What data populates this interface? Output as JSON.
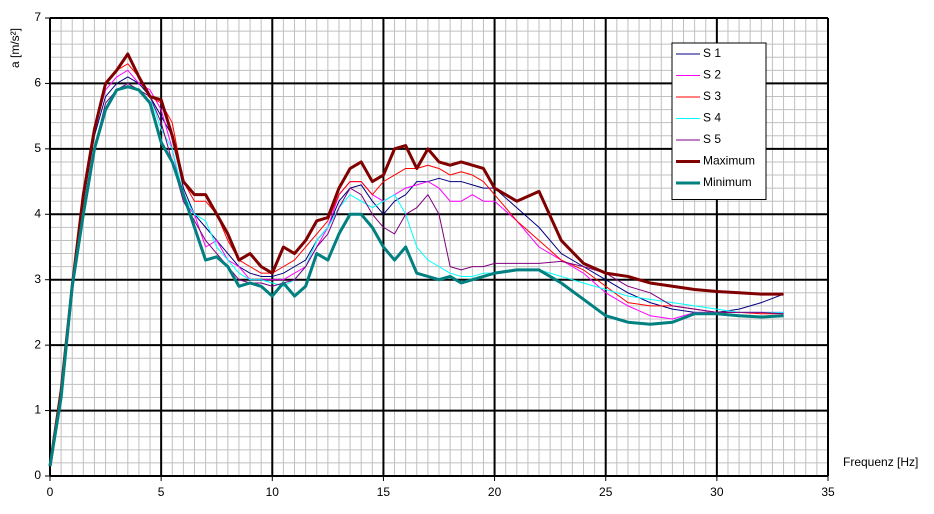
{
  "chart_data": {
    "type": "line",
    "x_label": "Frequenz [Hz]",
    "y_label": "a [m/s²]",
    "x": [
      0,
      0.5,
      1,
      1.5,
      2,
      2.5,
      3,
      3.5,
      4,
      4.5,
      5,
      5.5,
      6,
      6.5,
      7,
      7.5,
      8,
      8.5,
      9,
      9.5,
      10,
      10.5,
      11,
      11.5,
      12,
      12.5,
      13,
      13.5,
      14,
      14.5,
      15,
      15.5,
      16,
      16.5,
      17,
      17.5,
      18,
      18.5,
      19,
      19.5,
      20,
      21,
      22,
      23,
      24,
      25,
      26,
      27,
      28,
      29,
      30,
      31,
      32,
      33
    ],
    "series": [
      {
        "name": "S 1",
        "color": "#000080",
        "line_width": 1,
        "values": [
          0.15,
          1.2,
          2.9,
          4.2,
          5.2,
          5.8,
          6.0,
          6.1,
          6.0,
          5.8,
          5.5,
          5.2,
          4.4,
          4.0,
          3.8,
          3.6,
          3.4,
          3.2,
          3.1,
          3.05,
          3.05,
          3.1,
          3.2,
          3.3,
          3.6,
          3.8,
          4.2,
          4.4,
          4.45,
          4.2,
          4.0,
          4.2,
          4.3,
          4.5,
          4.5,
          4.55,
          4.5,
          4.5,
          4.45,
          4.4,
          4.4,
          4.1,
          3.8,
          3.4,
          3.2,
          3.0,
          2.8,
          2.65,
          2.55,
          2.5,
          2.5,
          2.55,
          2.65,
          2.78
        ]
      },
      {
        "name": "S 2",
        "color": "#ff00ff",
        "line_width": 1,
        "values": [
          0.15,
          1.25,
          2.9,
          4.3,
          5.3,
          5.9,
          6.1,
          6.2,
          6.0,
          5.9,
          5.6,
          5.0,
          4.2,
          4.0,
          3.5,
          3.6,
          3.3,
          3.2,
          3.0,
          3.0,
          3.0,
          3.0,
          3.1,
          3.2,
          3.5,
          3.8,
          4.3,
          4.5,
          4.5,
          4.3,
          4.2,
          4.3,
          4.4,
          4.45,
          4.5,
          4.4,
          4.2,
          4.2,
          4.3,
          4.2,
          4.2,
          3.9,
          3.5,
          3.3,
          3.1,
          2.8,
          2.6,
          2.45,
          2.4,
          2.5,
          2.5,
          2.5,
          2.5,
          2.5
        ]
      },
      {
        "name": "S 3",
        "color": "#ff0000",
        "line_width": 1,
        "values": [
          0.15,
          1.3,
          2.9,
          4.3,
          5.3,
          6.0,
          6.2,
          6.3,
          6.1,
          5.8,
          5.7,
          5.4,
          4.5,
          4.2,
          4.2,
          4.0,
          3.6,
          3.3,
          3.2,
          3.1,
          3.1,
          3.2,
          3.3,
          3.5,
          3.7,
          3.9,
          4.3,
          4.5,
          4.5,
          4.3,
          4.5,
          4.6,
          4.7,
          4.7,
          4.75,
          4.7,
          4.6,
          4.65,
          4.6,
          4.5,
          4.3,
          3.9,
          3.6,
          3.3,
          3.15,
          2.9,
          2.65,
          2.6,
          2.6,
          2.55,
          2.5,
          2.5,
          2.48,
          2.48
        ]
      },
      {
        "name": "S 4",
        "color": "#00ffff",
        "line_width": 1,
        "values": [
          0.15,
          1.2,
          2.9,
          4.1,
          5.0,
          5.7,
          5.9,
          6.0,
          5.9,
          5.8,
          5.3,
          5.0,
          4.3,
          4.0,
          3.9,
          3.5,
          3.3,
          3.1,
          3.0,
          3.0,
          2.95,
          2.9,
          3.0,
          3.2,
          3.6,
          3.8,
          4.1,
          4.3,
          4.2,
          4.1,
          4.2,
          4.3,
          4.0,
          3.5,
          3.3,
          3.2,
          3.1,
          3.05,
          3.05,
          3.1,
          3.1,
          3.15,
          3.15,
          3.05,
          2.95,
          2.85,
          2.75,
          2.7,
          2.65,
          2.6,
          2.55,
          2.5,
          2.5,
          2.5
        ]
      },
      {
        "name": "S 5",
        "color": "#800080",
        "line_width": 1,
        "values": [
          0.15,
          1.2,
          2.9,
          4.1,
          5.0,
          5.7,
          5.9,
          6.0,
          5.9,
          5.8,
          5.4,
          4.8,
          4.2,
          3.9,
          3.6,
          3.4,
          3.2,
          3.0,
          2.95,
          2.95,
          2.9,
          2.95,
          3.0,
          3.2,
          3.5,
          3.7,
          4.1,
          4.4,
          4.3,
          4.0,
          3.8,
          3.7,
          4.0,
          4.1,
          4.3,
          4.0,
          3.2,
          3.15,
          3.2,
          3.2,
          3.25,
          3.25,
          3.25,
          3.28,
          3.2,
          3.1,
          2.9,
          2.8,
          2.6,
          2.55,
          2.5,
          2.5,
          2.5,
          2.48
        ]
      },
      {
        "name": "Maximum",
        "color": "#800000",
        "line_width": 3,
        "values": [
          0.15,
          1.3,
          2.9,
          4.3,
          5.3,
          6.0,
          6.2,
          6.45,
          6.1,
          5.8,
          5.75,
          5.2,
          4.5,
          4.3,
          4.3,
          4.0,
          3.7,
          3.3,
          3.4,
          3.2,
          3.1,
          3.5,
          3.4,
          3.6,
          3.9,
          3.95,
          4.4,
          4.7,
          4.8,
          4.5,
          4.6,
          5.0,
          5.05,
          4.7,
          5.0,
          4.8,
          4.75,
          4.8,
          4.75,
          4.7,
          4.4,
          4.2,
          4.35,
          3.6,
          3.25,
          3.1,
          3.05,
          2.95,
          2.9,
          2.85,
          2.82,
          2.8,
          2.78,
          2.78
        ]
      },
      {
        "name": "Minimum",
        "color": "#008080",
        "line_width": 3,
        "values": [
          0.15,
          1.2,
          2.9,
          4.0,
          5.0,
          5.6,
          5.9,
          5.95,
          5.9,
          5.7,
          5.1,
          4.8,
          4.3,
          3.8,
          3.3,
          3.35,
          3.2,
          2.9,
          2.95,
          2.9,
          2.75,
          2.95,
          2.75,
          2.9,
          3.4,
          3.3,
          3.7,
          4.0,
          4.0,
          3.8,
          3.5,
          3.3,
          3.5,
          3.1,
          3.05,
          3.0,
          3.05,
          2.95,
          3.0,
          3.05,
          3.1,
          3.15,
          3.15,
          2.95,
          2.7,
          2.45,
          2.35,
          2.32,
          2.35,
          2.48,
          2.48,
          2.45,
          2.43,
          2.45
        ]
      }
    ],
    "xlim": [
      0,
      35
    ],
    "ylim": [
      0,
      7
    ],
    "xticks": [
      0,
      5,
      10,
      15,
      20,
      25,
      30,
      35
    ],
    "yticks": [
      0,
      1,
      2,
      3,
      4,
      5,
      6,
      7
    ],
    "grid": true,
    "minor_grid": {
      "x": 0.5,
      "y": 0.2
    },
    "legend": "upper right"
  }
}
